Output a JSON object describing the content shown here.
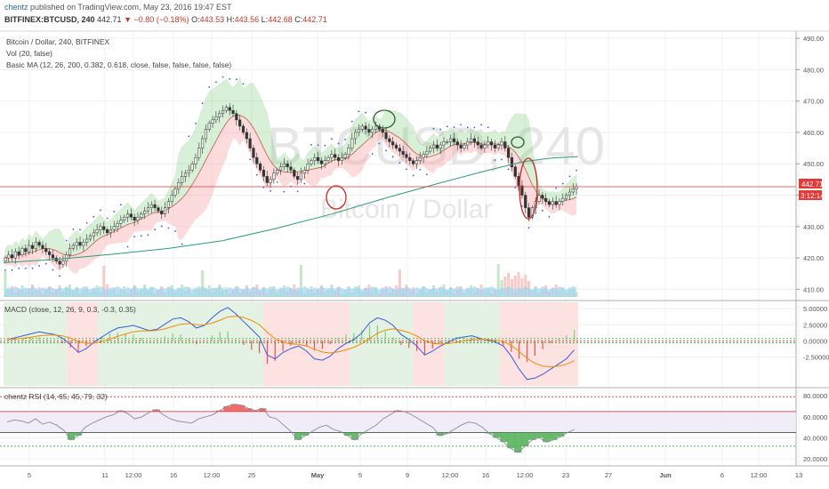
{
  "header": {
    "author": "chentz",
    "published": " published on TradingView.com, May 23, 2016 19:47 EST",
    "symbol": "BITFINEX:BTCUSD, 240",
    "last": "442.71",
    "change": "−0.80 (−0.18%)",
    "open_label": "O:",
    "open": "443.53",
    "high_label": "H:",
    "high": "443.56",
    "low_label": "L:",
    "low": "442.68",
    "close_label": "C:",
    "close": "442.71"
  },
  "legend": {
    "main": "Bitcoin / Dollar, 240, BITFINEX",
    "vol": "Vol (20, false)",
    "ma": "Basic MA (12, 26, 200, 0.382, 0.618, close, false, false, false, false)",
    "macd": "MACD (close, 12, 26, 9, 0.3, -0.3, 0.35)",
    "rsi": "chentz RSI (14, 65, 45, 79, 32)"
  },
  "watermark": {
    "symbol": "BTCUSD, 240",
    "name": "Bitcoin / Dollar"
  },
  "colors": {
    "up": "#26a69a",
    "down": "#ef5350",
    "band_green": "#7ccf7c",
    "band_red": "#f4a5a5",
    "ma200": "#2e9e6e",
    "price_line": "#e53935",
    "macd": "#3b5bdb",
    "signal": "#f08c00"
  },
  "chart_data": [
    {
      "type": "candlestick",
      "title": "Bitcoin / Dollar, 240, BITFINEX",
      "yticks": [
        "490.00",
        "480.00",
        "470.00",
        "460.00",
        "450.00",
        "440.00",
        "430.00",
        "420.00",
        "410.00"
      ],
      "ylim": [
        407,
        492
      ],
      "price_label": "442.71",
      "countdown_label": "3:12:14",
      "ma200": [
        [
          0,
          418.5
        ],
        [
          20,
          419.6
        ],
        [
          40,
          421.2
        ],
        [
          60,
          423
        ],
        [
          80,
          425.5
        ],
        [
          100,
          429.5
        ],
        [
          120,
          434
        ],
        [
          140,
          439.2
        ],
        [
          160,
          444
        ],
        [
          175,
          447.5
        ],
        [
          190,
          450.7
        ],
        [
          200,
          451.8
        ],
        [
          210,
          452.3
        ]
      ],
      "close": [
        420,
        421,
        420,
        422,
        421,
        423,
        422,
        424,
        423,
        425,
        424,
        423,
        422,
        421,
        420,
        419,
        418,
        419,
        421,
        423,
        424,
        425,
        424,
        425,
        426,
        427,
        428,
        429,
        430,
        429,
        428,
        429,
        430,
        431,
        432,
        433,
        434,
        433,
        432,
        433,
        434,
        435,
        436,
        437,
        436,
        435,
        434,
        436,
        438,
        440,
        442,
        444,
        446,
        447,
        448,
        450,
        452,
        455,
        458,
        461,
        463,
        464,
        465,
        466,
        467,
        468,
        467,
        466,
        464,
        462,
        460,
        458,
        455,
        452,
        450,
        448,
        446,
        444,
        445,
        447,
        448,
        449,
        450,
        449,
        448,
        446,
        445,
        447,
        448,
        450,
        451,
        452,
        451,
        450,
        451,
        452,
        453,
        452,
        451,
        452,
        453,
        455,
        458,
        460,
        461,
        462,
        461,
        460,
        461,
        462,
        461,
        460,
        458,
        457,
        456,
        455,
        454,
        453,
        452,
        451,
        450,
        451,
        452,
        453,
        454,
        455,
        456,
        455,
        456,
        457,
        457,
        458,
        457,
        456,
        455,
        456,
        457,
        458,
        457,
        456,
        455,
        456,
        457,
        456,
        455,
        456,
        457,
        455,
        452,
        449,
        446,
        443,
        440,
        436,
        433,
        436,
        438,
        440,
        439,
        438,
        437,
        438,
        437,
        438,
        439,
        440,
        441,
        442,
        442.71
      ]
    },
    {
      "type": "volume",
      "title": "Vol (20, false)"
    },
    {
      "type": "line",
      "title": "MACD (close, 12, 26, 9, 0.3, -0.3, 0.35)",
      "yticks": [
        "5.00000",
        "2.50000",
        "0.00000",
        "-2.50000"
      ],
      "ylim": [
        -7,
        6
      ],
      "macd": [
        0.2,
        0.5,
        0.8,
        1.1,
        1.4,
        1.2,
        1.0,
        0.4,
        -0.6,
        -1.8,
        -1.2,
        -0.2,
        0.6,
        1.4,
        2.0,
        2.2,
        2.4,
        2.0,
        1.6,
        1.8,
        2.6,
        3.4,
        3.6,
        3.0,
        2.0,
        2.4,
        3.6,
        4.6,
        5.2,
        4.2,
        3.0,
        1.8,
        0.6,
        -2.2,
        -2.8,
        -1.8,
        -1.2,
        -0.8,
        -1.6,
        -2.8,
        -3.0,
        -2.4,
        -1.2,
        -0.4,
        0.2,
        1.2,
        2.8,
        3.6,
        3.2,
        2.4,
        1.0,
        0.2,
        -0.8,
        -2.2,
        -1.6,
        -0.8,
        -0.2,
        0.4,
        0.6,
        0.8,
        0.4,
        0.1,
        -0.2,
        -0.8,
        -2.4,
        -4.4,
        -6.0,
        -5.8,
        -5.2,
        -4.4,
        -3.6,
        -2.8,
        -1.4
      ]
    },
    {
      "type": "line",
      "title": "chentz RSI (14, 65, 45, 79, 32)",
      "yticks": [
        "80.0000",
        "60.0000",
        "40.0000",
        "20.0000"
      ],
      "ylim": [
        15,
        86
      ],
      "levels": [
        79,
        65,
        45,
        32
      ],
      "rsi": [
        55,
        57,
        56,
        54,
        58,
        53,
        55,
        52,
        47,
        38,
        42,
        50,
        54,
        57,
        60,
        62,
        66,
        63,
        58,
        60,
        64,
        67,
        62,
        58,
        56,
        55,
        54,
        58,
        60,
        62,
        66,
        70,
        72,
        71,
        68,
        66,
        68,
        60,
        58,
        52,
        46,
        38,
        42,
        46,
        50,
        52,
        48,
        46,
        42,
        38,
        44,
        48,
        52,
        58,
        62,
        66,
        65,
        62,
        58,
        54,
        50,
        42,
        44,
        48,
        52,
        55,
        54,
        50,
        44,
        40,
        36,
        30,
        26,
        32,
        38,
        40,
        36,
        38,
        41,
        45,
        48
      ]
    }
  ],
  "xaxis": {
    "labels": [
      "5",
      "11",
      "12:00",
      "16",
      "12:00",
      "25",
      "May",
      "5",
      "9",
      "12:00",
      "16",
      "12:00",
      "23",
      "27",
      "Jun",
      "6",
      "12:00",
      "13"
    ]
  }
}
